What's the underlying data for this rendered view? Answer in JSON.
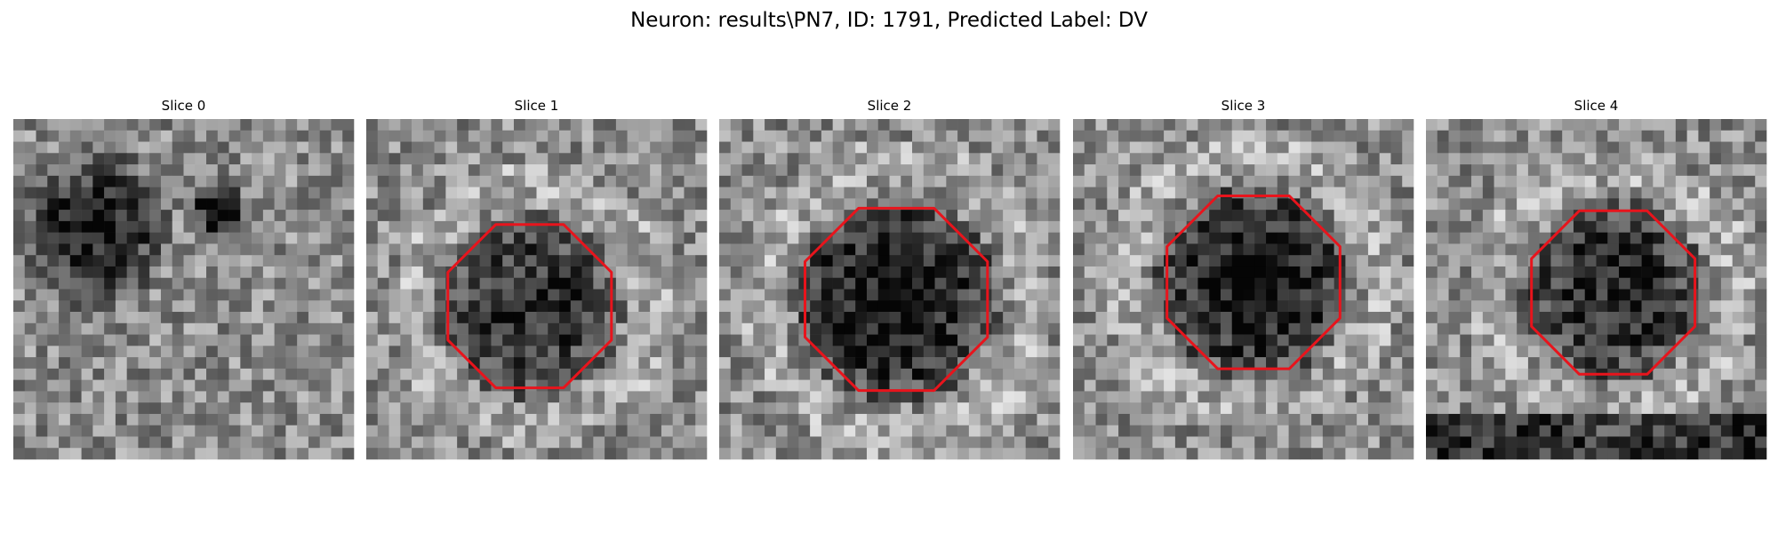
{
  "title": "Neuron: results\\PN7, ID: 1791, Predicted Label: DV",
  "panels": [
    {
      "title": "Slice 0"
    },
    {
      "title": "Slice 1"
    },
    {
      "title": "Slice 2"
    },
    {
      "title": "Slice 3"
    },
    {
      "title": "Slice 4"
    }
  ]
}
